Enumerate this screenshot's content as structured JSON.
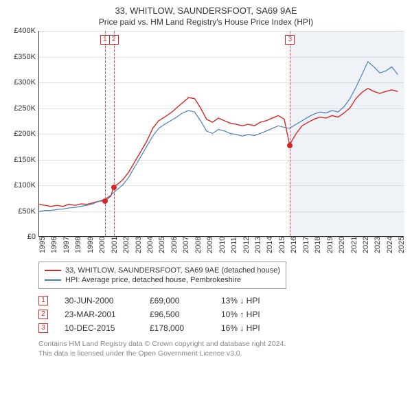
{
  "title": "33, WHITLOW, SAUNDERSFOOT, SA69 9AE",
  "subtitle": "Price paid vs. HM Land Registry's House Price Index (HPI)",
  "chart": {
    "type": "line",
    "xlim": [
      1995,
      2025.5
    ],
    "ylim": [
      0,
      400000
    ],
    "ytick_step": 50000,
    "yticks": [
      {
        "v": 0,
        "label": "£0"
      },
      {
        "v": 50000,
        "label": "£50K"
      },
      {
        "v": 100000,
        "label": "£100K"
      },
      {
        "v": 150000,
        "label": "£150K"
      },
      {
        "v": 200000,
        "label": "£200K"
      },
      {
        "v": 250000,
        "label": "£250K"
      },
      {
        "v": 300000,
        "label": "£300K"
      },
      {
        "v": 350000,
        "label": "£350K"
      },
      {
        "v": 400000,
        "label": "£400K"
      }
    ],
    "xticks": [
      1995,
      1996,
      1997,
      1998,
      1999,
      2000,
      2001,
      2002,
      2003,
      2004,
      2005,
      2006,
      2007,
      2008,
      2009,
      2010,
      2011,
      2012,
      2013,
      2014,
      2015,
      2016,
      2017,
      2018,
      2019,
      2020,
      2021,
      2022,
      2023,
      2024,
      2025
    ],
    "grid_color": "#e0e0e0",
    "background_color": "#ffffff",
    "future_shade": {
      "from_x": 2015.95,
      "color": "rgba(120,160,200,0.12)"
    },
    "series": [
      {
        "name": "property",
        "color": "#d62728",
        "width": 1.4,
        "points": [
          [
            1995,
            62000
          ],
          [
            1995.5,
            60000
          ],
          [
            1996,
            58000
          ],
          [
            1996.5,
            60000
          ],
          [
            1997,
            58000
          ],
          [
            1997.5,
            62000
          ],
          [
            1998,
            60000
          ],
          [
            1998.5,
            63000
          ],
          [
            1999,
            62000
          ],
          [
            1999.5,
            65000
          ],
          [
            2000,
            68000
          ],
          [
            2000.5,
            69000
          ],
          [
            2001,
            78000
          ],
          [
            2001.23,
            96500
          ],
          [
            2001.5,
            100000
          ],
          [
            2002,
            110000
          ],
          [
            2002.5,
            125000
          ],
          [
            2003,
            145000
          ],
          [
            2003.5,
            165000
          ],
          [
            2004,
            185000
          ],
          [
            2004.5,
            210000
          ],
          [
            2005,
            225000
          ],
          [
            2005.5,
            232000
          ],
          [
            2006,
            240000
          ],
          [
            2006.5,
            250000
          ],
          [
            2007,
            260000
          ],
          [
            2007.5,
            270000
          ],
          [
            2008,
            268000
          ],
          [
            2008.5,
            250000
          ],
          [
            2009,
            228000
          ],
          [
            2009.5,
            222000
          ],
          [
            2010,
            230000
          ],
          [
            2010.5,
            225000
          ],
          [
            2011,
            220000
          ],
          [
            2011.5,
            218000
          ],
          [
            2012,
            215000
          ],
          [
            2012.5,
            218000
          ],
          [
            2013,
            215000
          ],
          [
            2013.5,
            222000
          ],
          [
            2014,
            225000
          ],
          [
            2014.5,
            230000
          ],
          [
            2015,
            235000
          ],
          [
            2015.5,
            228000
          ],
          [
            2015.95,
            178000
          ],
          [
            2016.5,
            200000
          ],
          [
            2017,
            215000
          ],
          [
            2017.5,
            222000
          ],
          [
            2018,
            228000
          ],
          [
            2018.5,
            232000
          ],
          [
            2019,
            230000
          ],
          [
            2019.5,
            235000
          ],
          [
            2020,
            232000
          ],
          [
            2020.5,
            240000
          ],
          [
            2021,
            250000
          ],
          [
            2021.5,
            268000
          ],
          [
            2022,
            280000
          ],
          [
            2022.5,
            288000
          ],
          [
            2023,
            282000
          ],
          [
            2023.5,
            278000
          ],
          [
            2024,
            282000
          ],
          [
            2024.5,
            285000
          ],
          [
            2025,
            282000
          ]
        ]
      },
      {
        "name": "hpi",
        "color": "#4a7ebb",
        "width": 1.2,
        "points": [
          [
            1995,
            48000
          ],
          [
            1995.5,
            50000
          ],
          [
            1996,
            50000
          ],
          [
            1996.5,
            52000
          ],
          [
            1997,
            53000
          ],
          [
            1997.5,
            55000
          ],
          [
            1998,
            56000
          ],
          [
            1998.5,
            58000
          ],
          [
            1999,
            60000
          ],
          [
            1999.5,
            63000
          ],
          [
            2000,
            68000
          ],
          [
            2000.5,
            72000
          ],
          [
            2001,
            80000
          ],
          [
            2001.5,
            90000
          ],
          [
            2002,
            100000
          ],
          [
            2002.5,
            115000
          ],
          [
            2003,
            135000
          ],
          [
            2003.5,
            155000
          ],
          [
            2004,
            175000
          ],
          [
            2004.5,
            195000
          ],
          [
            2005,
            210000
          ],
          [
            2005.5,
            218000
          ],
          [
            2006,
            225000
          ],
          [
            2006.5,
            232000
          ],
          [
            2007,
            240000
          ],
          [
            2007.5,
            245000
          ],
          [
            2008,
            242000
          ],
          [
            2008.5,
            225000
          ],
          [
            2009,
            205000
          ],
          [
            2009.5,
            200000
          ],
          [
            2010,
            208000
          ],
          [
            2010.5,
            205000
          ],
          [
            2011,
            200000
          ],
          [
            2011.5,
            198000
          ],
          [
            2012,
            195000
          ],
          [
            2012.5,
            198000
          ],
          [
            2013,
            196000
          ],
          [
            2013.5,
            200000
          ],
          [
            2014,
            205000
          ],
          [
            2014.5,
            210000
          ],
          [
            2015,
            215000
          ],
          [
            2015.5,
            212000
          ],
          [
            2015.95,
            210000
          ],
          [
            2016.5,
            218000
          ],
          [
            2017,
            225000
          ],
          [
            2017.5,
            232000
          ],
          [
            2018,
            238000
          ],
          [
            2018.5,
            242000
          ],
          [
            2019,
            240000
          ],
          [
            2019.5,
            245000
          ],
          [
            2020,
            242000
          ],
          [
            2020.5,
            252000
          ],
          [
            2021,
            268000
          ],
          [
            2021.5,
            290000
          ],
          [
            2022,
            315000
          ],
          [
            2022.5,
            340000
          ],
          [
            2023,
            330000
          ],
          [
            2023.5,
            318000
          ],
          [
            2024,
            322000
          ],
          [
            2024.5,
            330000
          ],
          [
            2025,
            315000
          ]
        ]
      }
    ],
    "sale_markers": [
      {
        "n": "1",
        "x": 2000.5,
        "y": 69000,
        "color": "#d62728"
      },
      {
        "n": "2",
        "x": 2001.23,
        "y": 96500,
        "color": "#d62728"
      },
      {
        "n": "3",
        "x": 2015.95,
        "y": 178000,
        "color": "#d62728"
      }
    ]
  },
  "legend": {
    "items": [
      {
        "color": "#d62728",
        "label": "33, WHITLOW, SAUNDERSFOOT, SA69 9AE (detached house)"
      },
      {
        "color": "#4a7ebb",
        "label": "HPI: Average price, detached house, Pembrokeshire"
      }
    ]
  },
  "sales": [
    {
      "n": "1",
      "color": "#d62728",
      "date": "30-JUN-2000",
      "price": "£69,000",
      "pct": "13% ↓ HPI"
    },
    {
      "n": "2",
      "color": "#d62728",
      "date": "23-MAR-2001",
      "price": "£96,500",
      "pct": "10% ↑ HPI"
    },
    {
      "n": "3",
      "color": "#d62728",
      "date": "10-DEC-2015",
      "price": "£178,000",
      "pct": "16% ↓ HPI"
    }
  ],
  "footnote1": "Contains HM Land Registry data © Crown copyright and database right 2024.",
  "footnote2": "This data is licensed under the Open Government Licence v3.0."
}
